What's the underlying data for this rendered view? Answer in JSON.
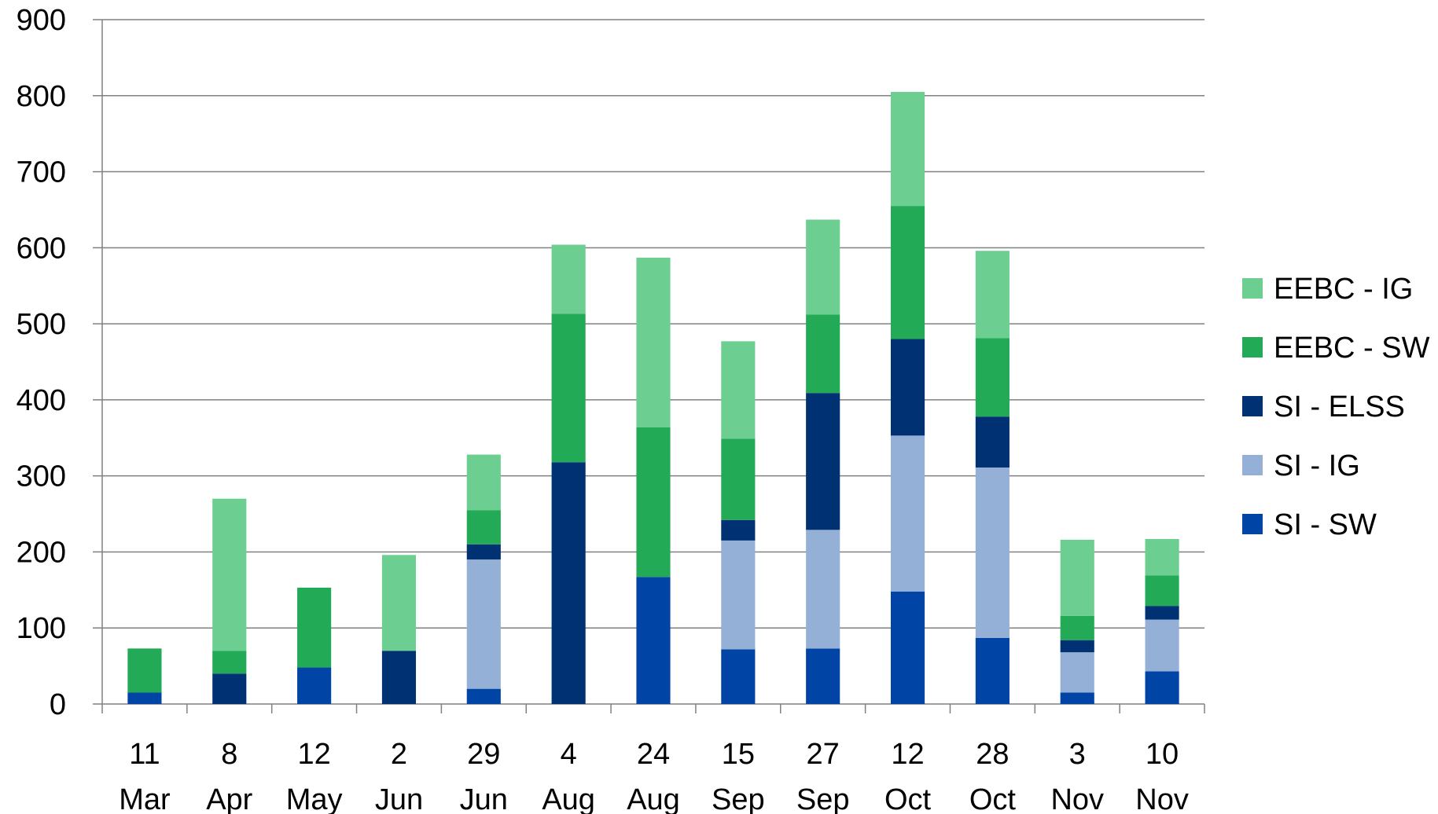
{
  "chart_data": {
    "type": "bar",
    "stacked": true,
    "title": "",
    "xlabel": "",
    "ylabel": "",
    "ylim": [
      0,
      900
    ],
    "yticks": [
      "0",
      "100",
      "200",
      "300",
      "400",
      "500",
      "600",
      "700",
      "800",
      "900"
    ],
    "grid": true,
    "legend_position": "right",
    "categories": [
      {
        "line1": "11",
        "line2": "Mar"
      },
      {
        "line1": "8",
        "line2": "Apr"
      },
      {
        "line1": "12",
        "line2": "May"
      },
      {
        "line1": "2",
        "line2": "Jun"
      },
      {
        "line1": "29",
        "line2": "Jun"
      },
      {
        "line1": "4",
        "line2": "Aug"
      },
      {
        "line1": "24",
        "line2": "Aug"
      },
      {
        "line1": "15",
        "line2": "Sep"
      },
      {
        "line1": "27",
        "line2": "Sep"
      },
      {
        "line1": "12",
        "line2": "Oct"
      },
      {
        "line1": "28",
        "line2": "Oct"
      },
      {
        "line1": "3",
        "line2": "Nov"
      },
      {
        "line1": "10",
        "line2": "Nov"
      }
    ],
    "series": [
      {
        "name": "SI - SW",
        "color": "#0045A6",
        "values": [
          15,
          0,
          48,
          0,
          20,
          0,
          167,
          72,
          73,
          148,
          87,
          15,
          43
        ]
      },
      {
        "name": "SI - IG",
        "color": "#95B0D6",
        "values": [
          0,
          0,
          0,
          0,
          170,
          0,
          0,
          143,
          156,
          205,
          224,
          53,
          68
        ]
      },
      {
        "name": "SI - ELSS",
        "color": "#003273",
        "values": [
          0,
          40,
          0,
          70,
          20,
          318,
          0,
          27,
          180,
          127,
          67,
          16,
          18
        ]
      },
      {
        "name": "EEBC - SW",
        "color": "#23AA57",
        "values": [
          58,
          30,
          105,
          0,
          45,
          195,
          197,
          107,
          103,
          175,
          103,
          32,
          40
        ]
      },
      {
        "name": "EEBC - IG",
        "color": "#6CCE90",
        "values": [
          0,
          200,
          0,
          126,
          73,
          91,
          223,
          128,
          125,
          150,
          115,
          100,
          48
        ]
      }
    ],
    "legend_order": [
      "EEBC - IG",
      "EEBC - SW",
      "SI - ELSS",
      "SI - IG",
      "SI - SW"
    ]
  }
}
